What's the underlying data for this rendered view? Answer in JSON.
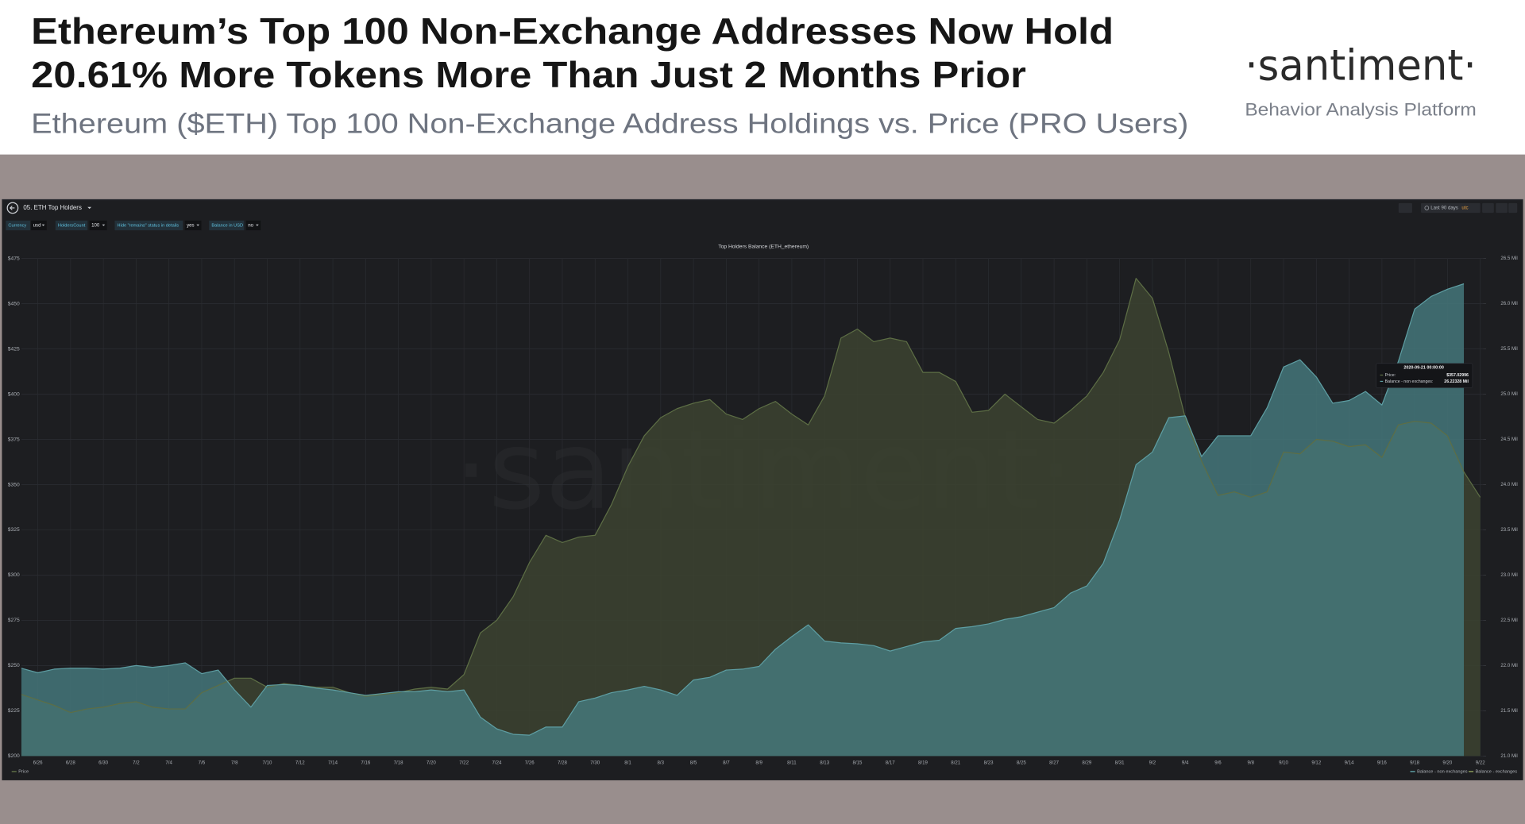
{
  "header": {
    "title_lines": [
      "Ethereum’s Top 100 Non-Exchange Addresses Now Hold",
      "20.61% More Tokens More Than Just 2 Months Prior"
    ],
    "subtitle": "Ethereum ($ETH) Top 100 Non-Exchange Address Holdings vs. Price (PRO Users)",
    "brand": "·santiment·",
    "tagline": "Behavior Analysis Platform"
  },
  "dashboard": {
    "name": "05. ETH Top Holders",
    "controls": [
      {
        "label": "Currency",
        "value": "usd"
      },
      {
        "label": "HoldersCount",
        "value": "100"
      },
      {
        "label": "Hide \"remains\" status in details",
        "value": "yes"
      },
      {
        "label": "Balance in USD",
        "value": "no"
      }
    ],
    "time_range": "Last 90 days",
    "timezone": "utc"
  },
  "chart_data": {
    "type": "area",
    "title": "Top Holders Balance (ETH_ethereum)",
    "watermark": "·santiment·",
    "categories": [
      null,
      "6/26",
      null,
      "6/28",
      null,
      "6/30",
      null,
      "7/2",
      null,
      "7/4",
      null,
      "7/6",
      null,
      "7/8",
      null,
      "7/10",
      null,
      "7/12",
      null,
      "7/14",
      null,
      "7/16",
      null,
      "7/18",
      null,
      "7/20",
      null,
      "7/22",
      null,
      "7/24",
      null,
      "7/26",
      null,
      "7/28",
      null,
      "7/30",
      null,
      "8/1",
      null,
      "8/3",
      null,
      "8/5",
      null,
      "8/7",
      null,
      "8/9",
      null,
      "8/11",
      null,
      "8/13",
      null,
      "8/15",
      null,
      "8/17",
      null,
      "8/19",
      null,
      "8/21",
      null,
      "8/23",
      null,
      "8/25",
      null,
      "8/27",
      null,
      "8/29",
      null,
      "8/31",
      null,
      "9/2",
      null,
      "9/4",
      null,
      "9/6",
      null,
      "9/8",
      null,
      "9/10",
      null,
      "9/12",
      null,
      "9/14",
      null,
      "9/16",
      null,
      "9/18",
      null,
      "9/20",
      null,
      "9/22"
    ],
    "series": [
      {
        "name": "Price",
        "color": "#5d6e45",
        "fill": "#3c4330",
        "values": [
          234,
          231,
          228,
          224,
          226,
          227,
          229,
          230,
          227,
          226,
          226,
          235,
          239,
          243,
          243,
          238,
          240,
          239,
          238,
          238,
          235,
          233,
          234,
          235,
          237,
          238,
          237,
          245,
          268,
          275,
          288,
          307,
          322,
          318,
          321,
          322,
          339,
          360,
          377,
          387,
          392,
          395,
          397,
          389,
          386,
          392,
          396,
          389,
          383,
          399,
          431,
          436,
          429,
          431,
          429,
          412,
          412,
          407,
          390,
          391,
          400,
          393,
          386,
          384,
          391,
          399,
          412,
          430,
          464,
          453,
          423,
          387,
          363,
          344,
          346,
          343,
          346,
          368,
          367,
          375,
          374,
          371,
          372,
          365,
          383,
          385,
          384,
          377,
          357.03,
          343
        ]
      },
      {
        "name": "Balance - non exchanges",
        "color": "#5e9ea3",
        "fill": "#467a7e",
        "axis": "y2",
        "values": [
          21.97,
          21.92,
          21.96,
          21.97,
          21.97,
          21.96,
          21.97,
          22.0,
          21.98,
          22.0,
          22.03,
          21.91,
          21.95,
          21.73,
          21.54,
          21.78,
          21.79,
          21.78,
          21.75,
          21.73,
          21.7,
          21.67,
          21.69,
          21.71,
          21.71,
          21.73,
          21.71,
          21.73,
          21.43,
          21.3,
          21.24,
          21.23,
          21.32,
          21.32,
          21.6,
          21.64,
          21.7,
          21.73,
          21.77,
          21.73,
          21.67,
          21.84,
          21.87,
          21.95,
          21.96,
          21.99,
          22.18,
          22.32,
          22.45,
          22.27,
          22.25,
          22.24,
          22.22,
          22.16,
          22.21,
          22.26,
          22.28,
          22.41,
          22.43,
          22.46,
          22.51,
          22.54,
          22.59,
          22.64,
          22.8,
          22.88,
          23.13,
          23.61,
          24.22,
          24.36,
          24.74,
          24.76,
          24.31,
          24.54,
          24.54,
          24.54,
          24.85,
          25.3,
          25.38,
          25.19,
          24.9,
          24.93,
          25.03,
          24.88,
          25.36,
          25.94,
          26.08,
          26.16,
          26.22,
          null
        ]
      }
    ],
    "extra_legend_entries": [
      {
        "name": "Balance - exchanges",
        "color": "#8a9a5b"
      }
    ],
    "ylim": [
      200,
      475
    ],
    "yticks": [
      {
        "value": 200,
        "label": "$200"
      },
      {
        "value": 225,
        "label": "$225"
      },
      {
        "value": 250,
        "label": "$250"
      },
      {
        "value": 275,
        "label": "$275"
      },
      {
        "value": 300,
        "label": "$300"
      },
      {
        "value": 325,
        "label": "$325"
      },
      {
        "value": 350,
        "label": "$350"
      },
      {
        "value": 375,
        "label": "$375"
      },
      {
        "value": 400,
        "label": "$400"
      },
      {
        "value": 425,
        "label": "$425"
      },
      {
        "value": 450,
        "label": "$450"
      },
      {
        "value": 475,
        "label": "$475"
      }
    ],
    "y2lim": [
      21,
      26.5
    ],
    "y2ticks": [
      {
        "value": 21,
        "label": "21.0 Mil"
      },
      {
        "value": 21.5,
        "label": "21.5 Mil"
      },
      {
        "value": 22,
        "label": "22.0 Mil"
      },
      {
        "value": 22.5,
        "label": "22.5 Mil"
      },
      {
        "value": 23,
        "label": "23.0 Mil"
      },
      {
        "value": 23.5,
        "label": "23.5 Mil"
      },
      {
        "value": 24,
        "label": "24.0 Mil"
      },
      {
        "value": 24.5,
        "label": "24.5 Mil"
      },
      {
        "value": 25,
        "label": "25.0 Mil"
      },
      {
        "value": 25.5,
        "label": "25.5 Mil"
      },
      {
        "value": 26,
        "label": "26.0 Mil"
      },
      {
        "value": 26.5,
        "label": "26.5 Mil"
      }
    ],
    "grid": true,
    "tooltip": {
      "date": "2020-09-21 00:00:00",
      "rows": [
        {
          "label": "Price:",
          "value": "$357.02996"
        },
        {
          "label": "Balance - non exchanges:",
          "value": "26.22328 Mil"
        }
      ]
    }
  }
}
